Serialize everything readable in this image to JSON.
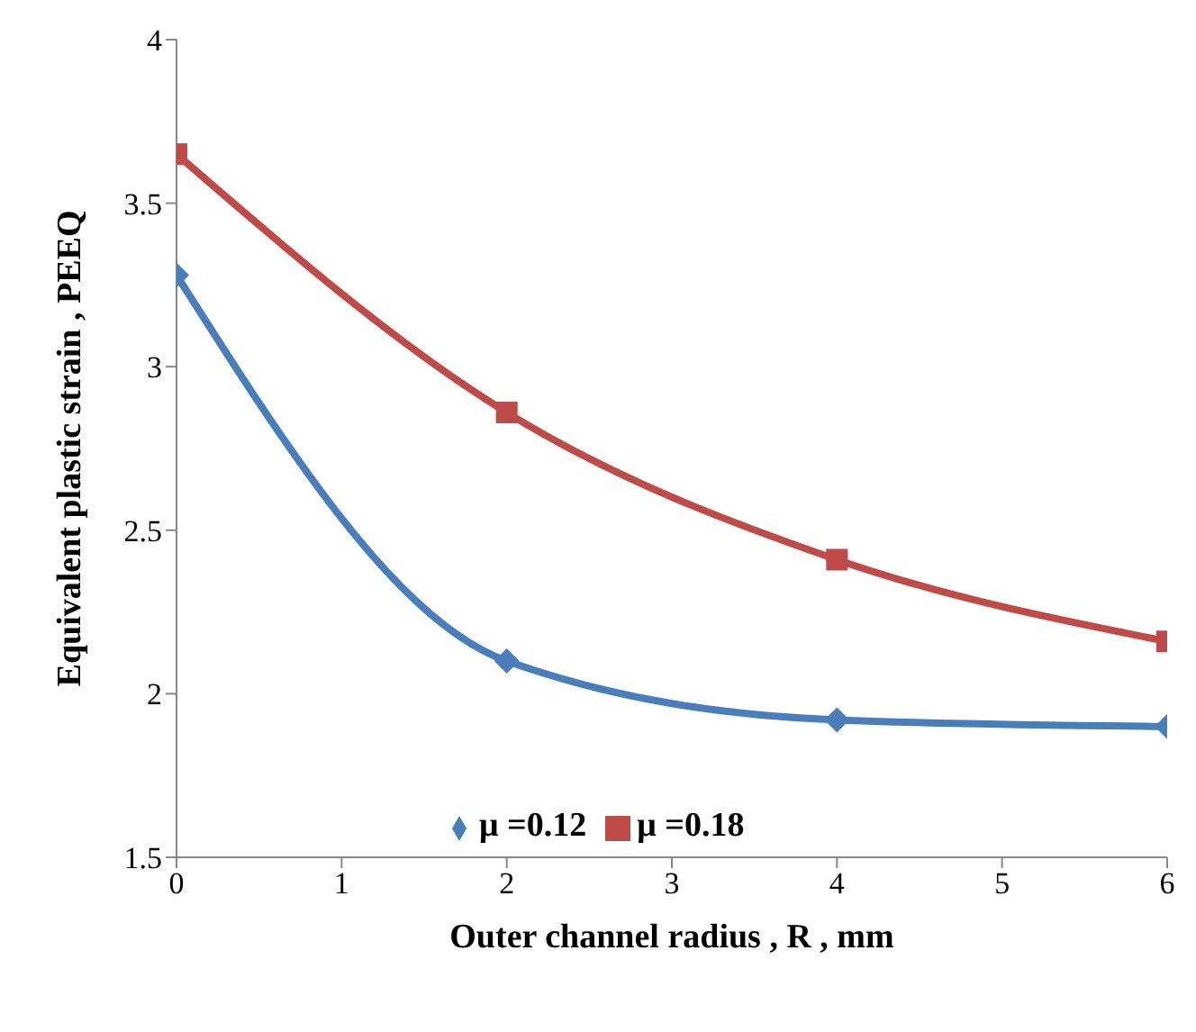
{
  "chart_data": {
    "type": "line",
    "xlabel": "Outer channel radius , R , mm",
    "ylabel": "Equivalent plastic strain , PEEQ",
    "x": [
      0,
      2,
      4,
      6
    ],
    "series": [
      {
        "name": "μ =0.12",
        "color": "#4a7ebb",
        "values": [
          3.28,
          2.1,
          1.92,
          1.9
        ],
        "marker": "diamond"
      },
      {
        "name": "μ =0.18",
        "color": "#be4b48",
        "values": [
          3.65,
          2.86,
          2.41,
          2.16
        ],
        "marker": "square"
      }
    ],
    "xlim": [
      0,
      6
    ],
    "xticks": [
      0,
      1,
      2,
      3,
      4,
      5,
      6
    ],
    "ylim": [
      1.5,
      4
    ],
    "yticks": [
      1.5,
      2,
      2.5,
      3,
      3.5,
      4
    ],
    "grid": false,
    "legend": "bottom",
    "line_style": "solid"
  }
}
